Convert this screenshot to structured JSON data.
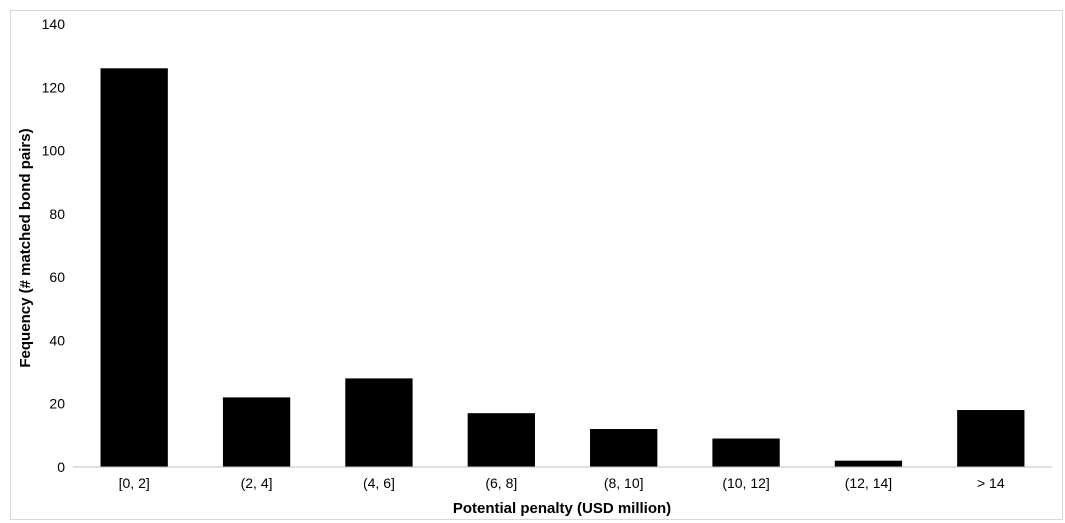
{
  "chart_data": {
    "type": "bar",
    "title": "",
    "xlabel": "Potential penalty (USD million)",
    "ylabel": "Fequency (# matched bond pairs)",
    "categories": [
      "[0, 2]",
      "(2, 4]",
      "(4, 6]",
      "(6, 8]",
      "(8, 10]",
      "(10, 12]",
      "(12, 14]",
      "> 14"
    ],
    "values": [
      126,
      22,
      28,
      17,
      12,
      9,
      2,
      18
    ],
    "ylim": [
      0,
      140
    ],
    "yticks": [
      "0",
      "20",
      "40",
      "60",
      "80",
      "100",
      "120",
      "140"
    ],
    "grid": false,
    "legend": "none",
    "bar_color": "#000000"
  }
}
